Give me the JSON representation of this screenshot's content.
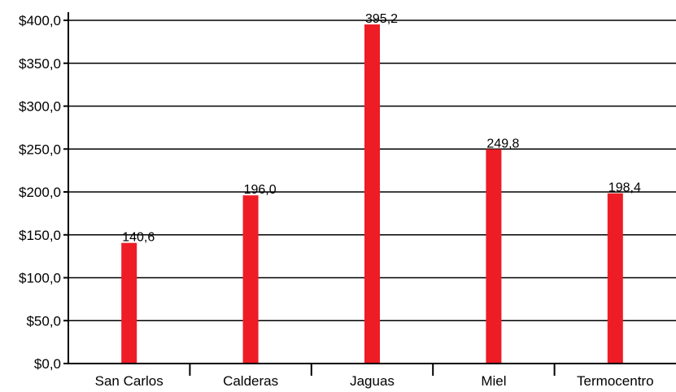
{
  "chart_data": {
    "type": "bar",
    "title": "",
    "xlabel": "",
    "ylabel": "",
    "categories": [
      "San Carlos",
      "Calderas",
      "Jaguas",
      "Miel",
      "Termocentro"
    ],
    "values": [
      140.6,
      196.0,
      395.2,
      249.8,
      198.4
    ],
    "value_labels": [
      "140,6",
      "196,0",
      "395,2",
      "249,8",
      "198,4"
    ],
    "ylim": [
      0,
      400
    ],
    "yticks": [
      0,
      50,
      100,
      150,
      200,
      250,
      300,
      350,
      400
    ],
    "ytick_labels": [
      "$0,0",
      "$50,0",
      "$100,0",
      "$150,0",
      "$200,0",
      "$250,0",
      "$300,0",
      "$350,0",
      "$400,0"
    ],
    "grid": true,
    "legend": "none",
    "bar_color": "#ee1c25"
  }
}
